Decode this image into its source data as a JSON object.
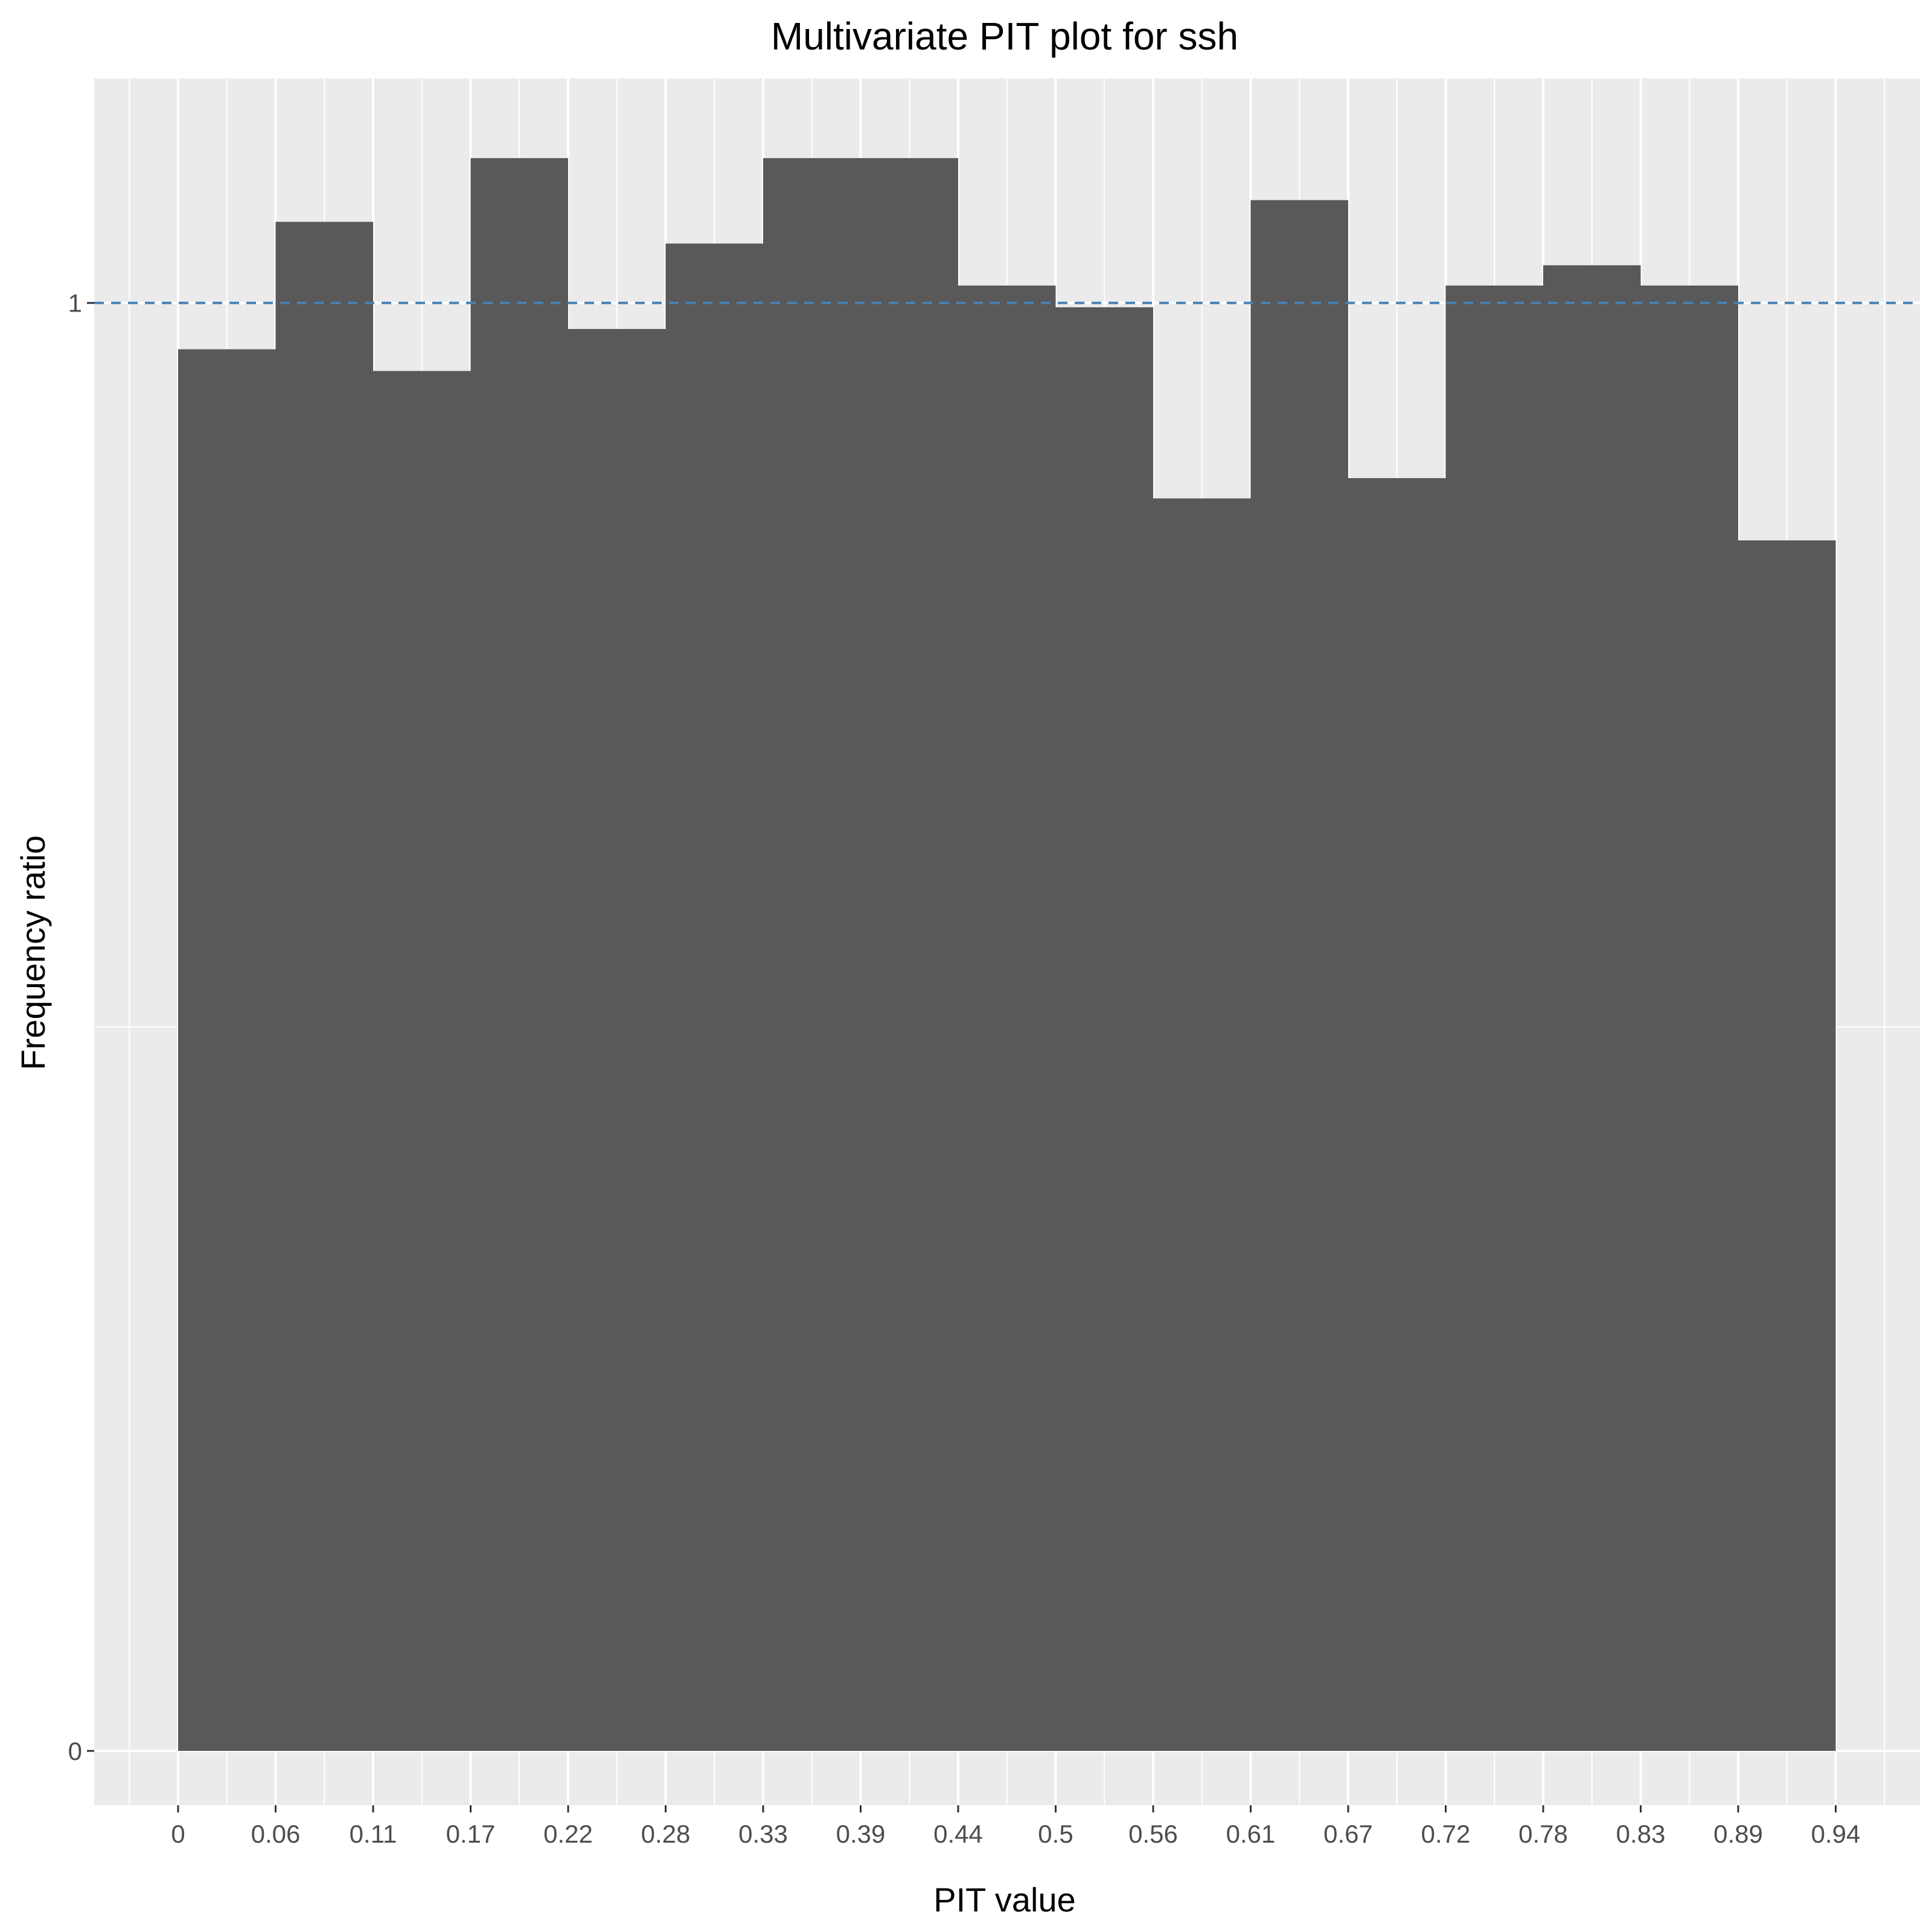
{
  "chart_data": {
    "type": "bar",
    "title": "Multivariate PIT plot for ssh",
    "xlabel": "PIT value",
    "ylabel": "Frequency ratio",
    "x_ticks": [
      "0",
      "0.06",
      "0.11",
      "0.17",
      "0.22",
      "0.28",
      "0.33",
      "0.39",
      "0.44",
      "0.5",
      "0.56",
      "0.61",
      "0.67",
      "0.72",
      "0.78",
      "0.83",
      "0.89",
      "0.94"
    ],
    "y_ticks": [
      "0",
      "1"
    ],
    "categories": [
      "0",
      "0.06",
      "0.11",
      "0.17",
      "0.22",
      "0.28",
      "0.33",
      "0.39",
      "0.44",
      "0.5",
      "0.56",
      "0.61",
      "0.67",
      "0.72",
      "0.78",
      "0.83",
      "0.89"
    ],
    "values": [
      0.968,
      1.056,
      0.953,
      1.1,
      0.982,
      1.041,
      1.1,
      1.1,
      1.012,
      0.997,
      0.865,
      1.071,
      0.879,
      1.012,
      1.026,
      1.012,
      0.836
    ],
    "reference_line": {
      "y": 1,
      "style": "dashed"
    },
    "ylim": [
      -0.0375,
      1.155
    ],
    "grid": true,
    "legend": "none",
    "colors": {
      "bar": "#595959",
      "panel_background": "#ebebeb",
      "grid": "#ffffff",
      "reference_line": "#4682b4"
    }
  }
}
